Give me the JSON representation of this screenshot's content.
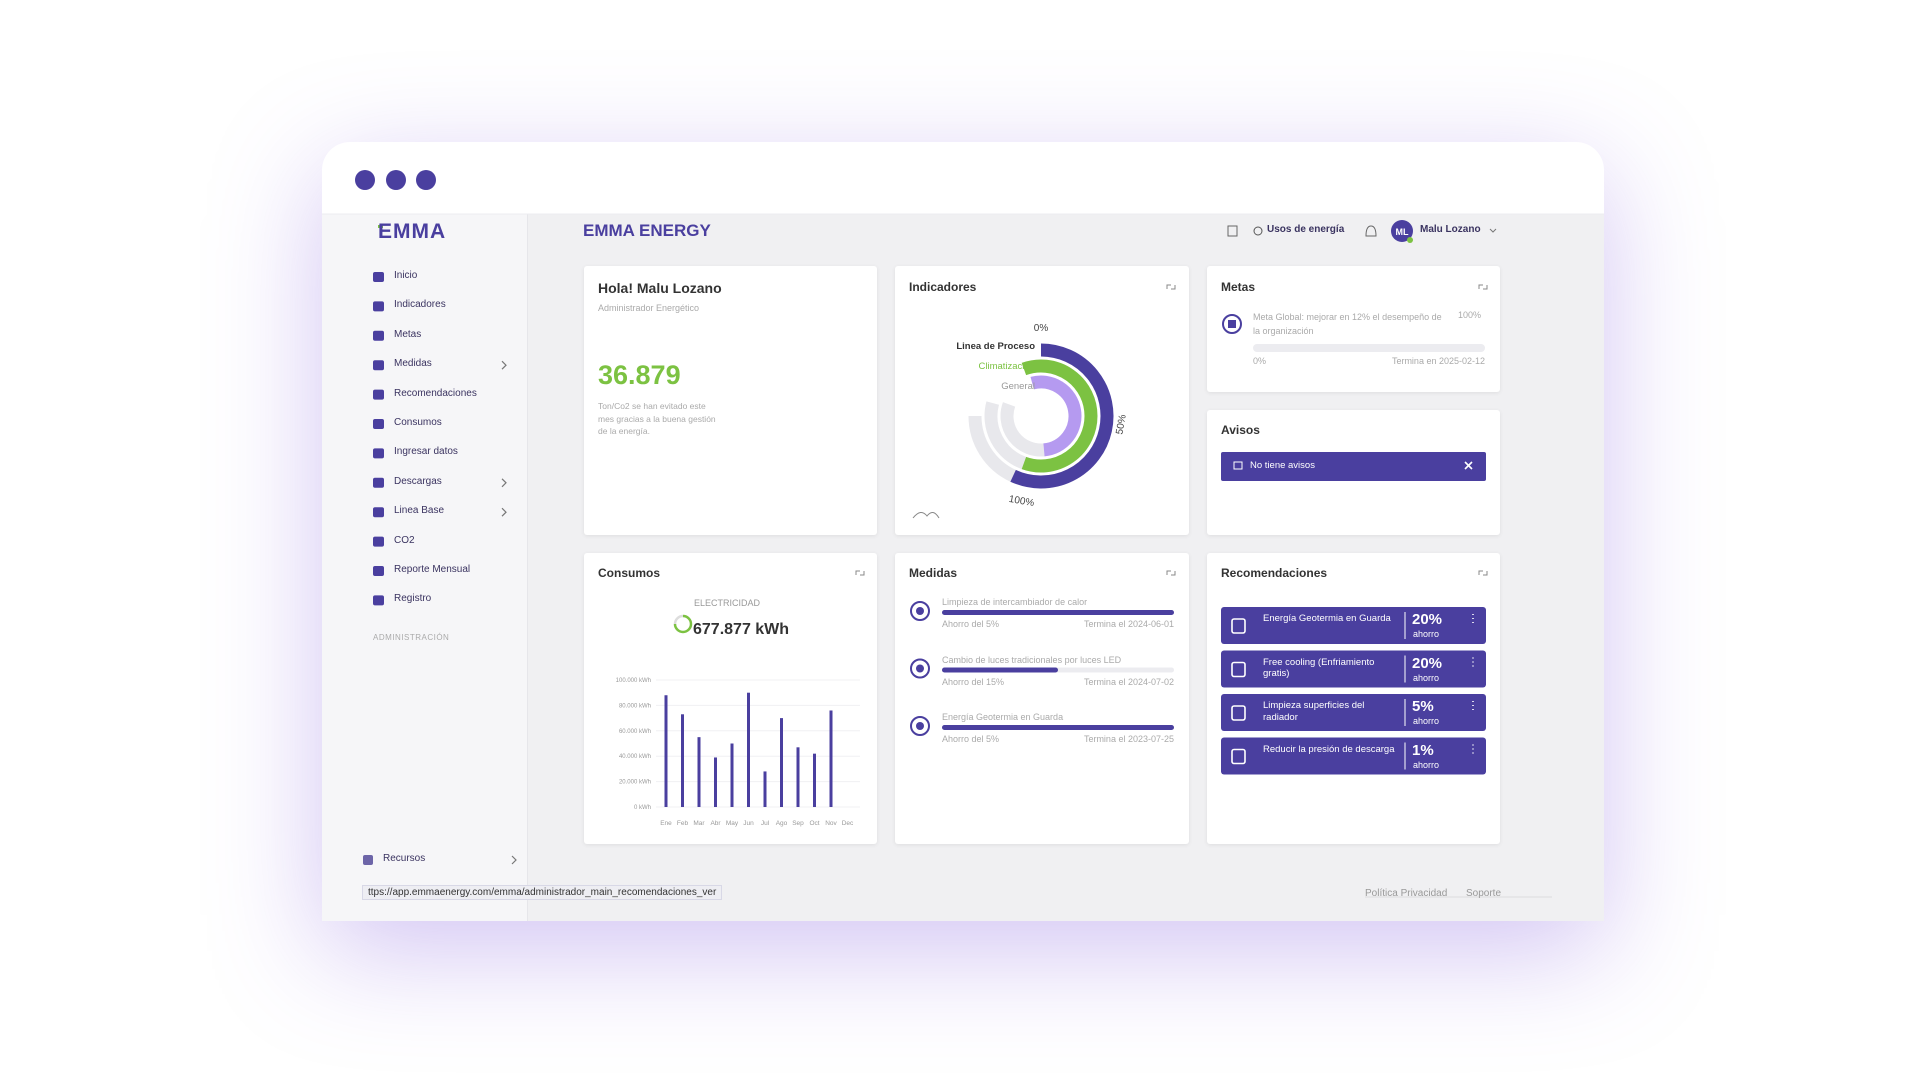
{
  "window": {
    "url": "ttps://app.emmaenergy.com/emma/administrador_main_recomendaciones_ver"
  },
  "sidebar": {
    "logo": "EMMA",
    "menu": [
      {
        "label": "Inicio",
        "submenu": false
      },
      {
        "label": "Indicadores",
        "submenu": false
      },
      {
        "label": "Metas",
        "submenu": false
      },
      {
        "label": "Medidas",
        "submenu": true
      },
      {
        "label": "Recomendaciones",
        "submenu": false
      },
      {
        "label": "Consumos",
        "submenu": false
      },
      {
        "label": "Ingresar datos",
        "submenu": false
      },
      {
        "label": "Descargas",
        "submenu": true
      },
      {
        "label": "Linea Base",
        "submenu": true
      },
      {
        "label": "CO2",
        "submenu": false
      },
      {
        "label": "Reporte Mensual",
        "submenu": false
      },
      {
        "label": "Registro",
        "submenu": false
      }
    ],
    "section": "ADMINISTRACIÓN",
    "bottom_item": "Recursos"
  },
  "header": {
    "title": "EMMA ENERGY",
    "usage_link": "Usos de energía",
    "user_initials": "ML",
    "user_name": "Malu Lozano"
  },
  "welcome": {
    "title": "Hola! Malu Lozano",
    "role": "Administrador Energético",
    "value": "36.879",
    "description": "Ton/Co2 se han evitado este mes gracias a la buena gestión de la energía."
  },
  "indicadores": {
    "title": "Indicadores",
    "labels": [
      "Linea de Proceso",
      "Climatización",
      "General"
    ],
    "scale": [
      "0%",
      "50%",
      "100%"
    ]
  },
  "metas": {
    "title": "Metas",
    "goal": "Meta Global: mejorar en 12% el desempeño de la organización",
    "target": "100%",
    "start": "0%",
    "end": "Termina en 2025-02-12"
  },
  "avisos": {
    "title": "Avisos",
    "message": "No tiene avisos"
  },
  "consumos": {
    "title": "Consumos",
    "kind": "ELECTRICIDAD",
    "total": "677.877 kWh",
    "chart": {
      "type": "bar",
      "categories": [
        "Ene",
        "Feb",
        "Mar",
        "Abr",
        "May",
        "Jun",
        "Jul",
        "Ago",
        "Sep",
        "Oct",
        "Nov",
        "Dec"
      ],
      "values": [
        88000,
        73000,
        55000,
        39000,
        50000,
        90000,
        28000,
        70000,
        47000,
        42000,
        76000,
        null
      ],
      "color": "#4a3f9f",
      "ylim": [
        0,
        100000
      ],
      "yticks": [
        {
          "value": 0,
          "label": "0 kWh"
        },
        {
          "value": 20000,
          "label": "20.000 kWh"
        },
        {
          "value": 40000,
          "label": "40.000 kWh"
        },
        {
          "value": 60000,
          "label": "60.000 kWh"
        },
        {
          "value": 80000,
          "label": "80.000 kWh"
        },
        {
          "value": 100000,
          "label": "100.000 kWh"
        }
      ],
      "grid": true
    }
  },
  "medidas": {
    "title": "Medidas",
    "items": [
      {
        "name": "Limpieza de intercambiador de calor",
        "saving": "Ahorro del 5%",
        "end": "Termina el 2024-06-01",
        "progress": 100
      },
      {
        "name": "Cambio de luces tradicionales por luces LED",
        "saving": "Ahorro del 15%",
        "end": "Termina el 2024-07-02",
        "progress": 50
      },
      {
        "name": "Energía Geotermia en Guarda",
        "saving": "Ahorro del 5%",
        "end": "Termina el 2023-07-25",
        "progress": 100
      }
    ]
  },
  "recomendaciones": {
    "title": "Recomendaciones",
    "unit": "ahorro",
    "items": [
      {
        "name": "Energía Geotermia en Guarda",
        "percent": "20%"
      },
      {
        "name": "Free cooling (Enfriamiento gratis)",
        "percent": "20%"
      },
      {
        "name": "Limpieza superficies del radiador",
        "percent": "5%"
      },
      {
        "name": "Reducir la presión de descarga",
        "percent": "1%"
      }
    ]
  },
  "footer": {
    "links": [
      "Política Privacidad",
      "Soporte"
    ]
  }
}
